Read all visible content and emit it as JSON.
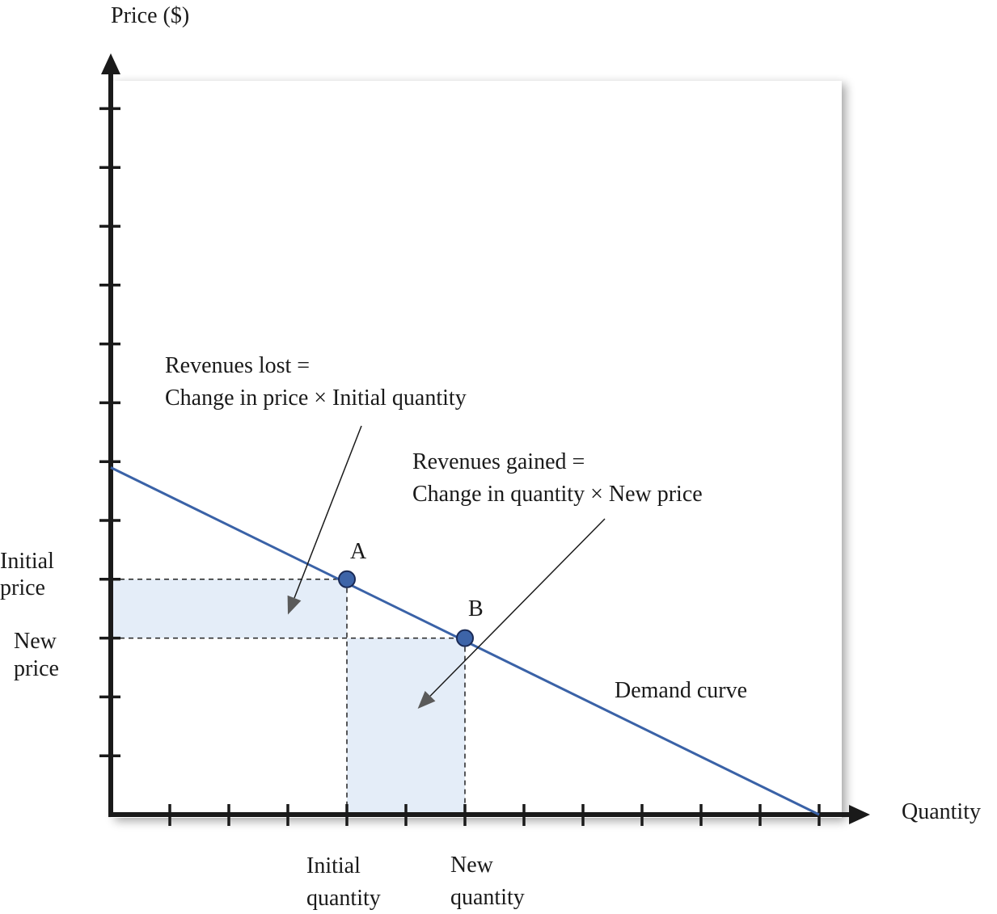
{
  "colors": {
    "axis": "#1a1a1a",
    "demand_line": "#3a62a7",
    "shade": "#e4edf8",
    "point_fill": "#3d64a8",
    "point_stroke": "#1a2a55",
    "annotation_arrow": "#1a1a1a",
    "arrow_head": "#5a5a5a"
  },
  "chart_data": {
    "type": "line",
    "title": "",
    "ylabel": "Price ($)",
    "xlabel": "Quantity",
    "xlim": [
      0,
      12
    ],
    "ylim": [
      0,
      12
    ],
    "x_ticks": [
      1,
      2,
      3,
      4,
      5,
      6,
      7,
      8,
      9,
      10,
      11,
      12
    ],
    "y_ticks": [
      1,
      2,
      3,
      4,
      5,
      6,
      7,
      8,
      9,
      10,
      11,
      12
    ],
    "grid": false,
    "series": [
      {
        "name": "Demand curve",
        "points": [
          [
            0,
            5.9
          ],
          [
            12,
            0
          ]
        ]
      }
    ],
    "points": [
      {
        "label": "A",
        "x": 4,
        "y": 4
      },
      {
        "label": "B",
        "x": 6,
        "y": 3
      }
    ],
    "axis_value_labels": {
      "y": [
        {
          "value": 4,
          "lines": [
            "Initial",
            "price"
          ]
        },
        {
          "value": 3,
          "lines": [
            "New",
            "price"
          ]
        }
      ],
      "x": [
        {
          "value": 4,
          "lines": [
            "Initial",
            "quantity"
          ]
        },
        {
          "value": 6,
          "lines": [
            "New",
            "quantity"
          ]
        }
      ]
    },
    "shaded_regions": [
      {
        "name": "revenues-lost",
        "x": [
          0,
          4
        ],
        "y": [
          3,
          4
        ]
      },
      {
        "name": "revenues-gained",
        "x": [
          4,
          6
        ],
        "y": [
          0,
          3
        ]
      }
    ],
    "annotations": [
      {
        "lines": [
          "Revenues lost =",
          "Change in price × Initial quantity"
        ],
        "target": [
          3,
          3.4
        ]
      },
      {
        "lines": [
          "Revenues gained =",
          "Change in quantity × New price"
        ],
        "target": [
          5.2,
          1.8
        ]
      },
      {
        "lines": [
          "Demand curve"
        ]
      }
    ]
  }
}
